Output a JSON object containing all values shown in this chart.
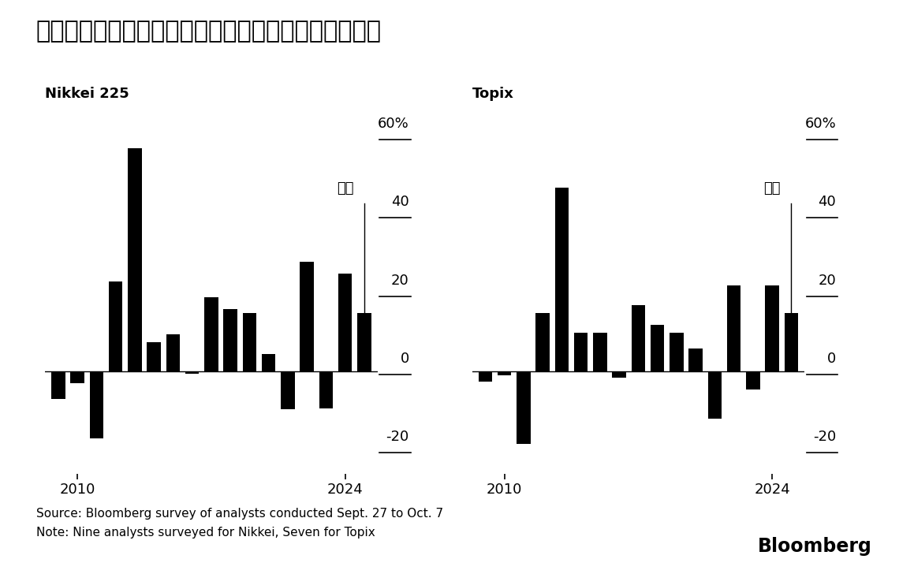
{
  "title": "ストラテジストらの間で年間上昇率２桁の予想が主流",
  "nikkei_label": "Nikkei 225",
  "topix_label": "Topix",
  "forecast_label": "予想",
  "source_line1": "Source: Bloomberg survey of analysts conducted Sept. 27 to Oct. 7",
  "source_line2": "Note: Nine analysts surveyed for Nikkei, Seven for Topix",
  "bloomberg_label": "Bloomberg",
  "years": [
    2009,
    2010,
    2011,
    2012,
    2013,
    2014,
    2015,
    2016,
    2017,
    2018,
    2019,
    2020,
    2021,
    2022,
    2023,
    2024,
    2025
  ],
  "nikkei_values": [
    -7.0,
    -3.0,
    -17.0,
    23.0,
    57.0,
    7.5,
    9.5,
    -0.5,
    19.0,
    16.0,
    15.0,
    4.5,
    -9.5,
    28.0,
    -9.4,
    25.0,
    15.0
  ],
  "topix_values": [
    -2.5,
    -1.0,
    -18.5,
    15.0,
    47.0,
    10.0,
    10.0,
    -1.5,
    17.0,
    12.0,
    10.0,
    6.0,
    -12.0,
    22.0,
    -4.5,
    22.0,
    15.0
  ],
  "forecast_year": 2025,
  "ylim": [
    -26,
    67
  ],
  "yticks": [
    -20,
    0,
    20,
    40,
    60
  ],
  "ytick_labels": [
    "-20",
    "0",
    "20",
    "40",
    "60%"
  ],
  "bar_color": "#000000",
  "bg_color": "#ffffff",
  "title_fontsize": 22,
  "sublabel_fontsize": 13,
  "tick_fontsize": 13,
  "source_fontsize": 11,
  "bloomberg_fontsize": 17,
  "annot_fontsize": 13
}
